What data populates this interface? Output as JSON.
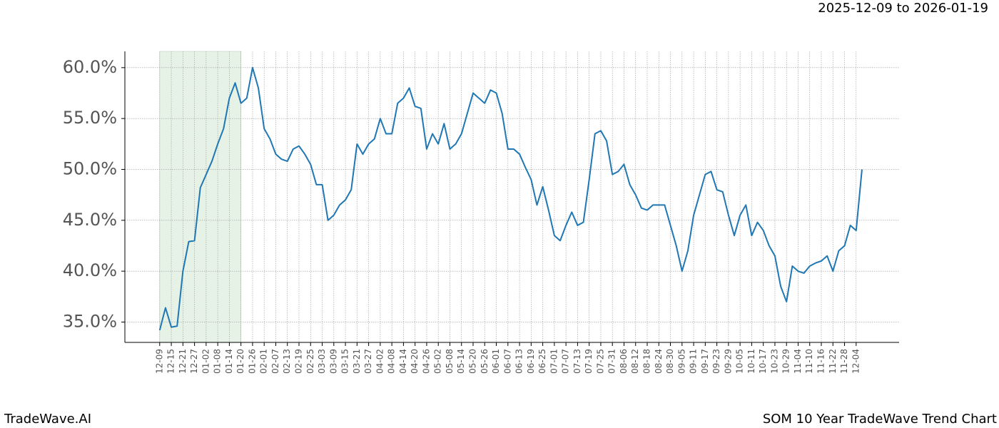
{
  "chart_data": {
    "type": "line",
    "date_range": "2025-12-09 to 2026-01-19",
    "brand": "TradeWave.AI",
    "title": "SOM 10 Year TradeWave Trend Chart",
    "color": "#1f77b4",
    "shade": {
      "from": "12-09",
      "to": "01-20",
      "color": "#e6f2e6"
    },
    "grid": true,
    "categories": [
      "12-09",
      null,
      "12-15",
      null,
      "12-21",
      null,
      "12-27",
      null,
      "01-02",
      null,
      "01-08",
      null,
      "01-14",
      null,
      "01-20",
      null,
      "01-26",
      null,
      "02-01",
      null,
      "02-07",
      null,
      "02-13",
      null,
      "02-19",
      null,
      "02-25",
      null,
      "03-03",
      null,
      "03-09",
      null,
      "03-15",
      null,
      "03-21",
      null,
      "03-27",
      null,
      "04-02",
      null,
      "04-08",
      null,
      "04-14",
      null,
      "04-20",
      null,
      "04-26",
      null,
      "05-02",
      null,
      "05-08",
      null,
      "05-14",
      null,
      "05-20",
      null,
      "05-26",
      null,
      "06-01",
      null,
      "06-07",
      null,
      "06-13",
      null,
      "06-19",
      null,
      "06-25",
      null,
      "07-01",
      null,
      "07-07",
      null,
      "07-13",
      null,
      "07-19",
      null,
      "07-25",
      null,
      "07-31",
      null,
      "08-06",
      null,
      "08-12",
      null,
      "08-18",
      null,
      "08-24",
      null,
      "08-30",
      null,
      "09-05",
      null,
      "09-11",
      null,
      "09-17",
      null,
      "09-23",
      null,
      "09-29",
      null,
      "10-05",
      null,
      "10-11",
      null,
      "10-17",
      null,
      "10-23",
      null,
      "10-29",
      null,
      "11-04",
      null,
      "11-10",
      null,
      "11-16",
      null,
      "11-22",
      null,
      "11-28",
      null,
      "12-04",
      null
    ],
    "values": [
      34.2,
      36.4,
      34.5,
      34.6,
      40.0,
      42.9,
      43.0,
      48.2,
      49.5,
      50.8,
      52.5,
      54.0,
      57.0,
      58.5,
      56.5,
      57.0,
      60.0,
      58.0,
      54.0,
      53.0,
      51.5,
      51.0,
      50.8,
      52.0,
      52.3,
      51.5,
      50.5,
      48.5,
      48.5,
      45.0,
      45.5,
      46.5,
      47.0,
      48.0,
      52.5,
      51.5,
      52.5,
      53.0,
      55.0,
      53.5,
      53.5,
      56.5,
      57.0,
      58.0,
      56.2,
      56.0,
      52.0,
      53.5,
      52.5,
      54.5,
      52.0,
      52.5,
      53.5,
      55.5,
      57.5,
      57.0,
      56.5,
      57.8,
      57.5,
      55.5,
      52.0,
      52.0,
      51.5,
      50.2,
      49.0,
      46.5,
      48.3,
      46.0,
      43.5,
      43.0,
      44.5,
      45.8,
      44.5,
      44.8,
      49.0,
      53.5,
      53.8,
      52.8,
      49.5,
      49.8,
      50.5,
      48.5,
      47.5,
      46.2,
      46.0,
      46.5,
      46.5,
      46.5,
      44.5,
      42.5,
      40.0,
      42.0,
      45.5,
      47.5,
      49.5,
      49.8,
      48.0,
      47.8,
      45.5,
      43.5,
      45.5,
      46.5,
      43.5,
      44.8,
      44.0,
      42.5,
      41.5,
      38.5,
      37.0,
      40.5,
      40.0,
      39.8,
      40.5,
      40.8,
      41.0,
      41.5,
      40.0,
      42.0,
      42.5,
      44.5,
      44.0,
      50.0
    ],
    "ylim": [
      33.0,
      61.6
    ],
    "yticks": [
      {
        "value": 35,
        "label": "35.0%"
      },
      {
        "value": 40,
        "label": "40.0%"
      },
      {
        "value": 45,
        "label": "45.0%"
      },
      {
        "value": 50,
        "label": "50.0%"
      },
      {
        "value": 55,
        "label": "55.0%"
      },
      {
        "value": 60,
        "label": "60.0%"
      }
    ]
  }
}
